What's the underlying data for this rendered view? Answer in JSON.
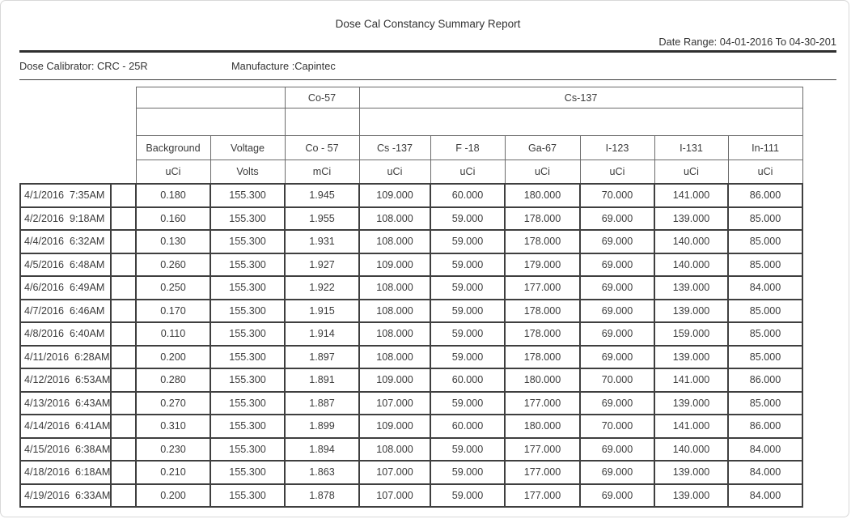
{
  "page": {
    "title": "Dose Cal Constancy Summary Report",
    "date_range": "Date Range: 04-01-2016 To 04-30-201",
    "dose_calibrator": "Dose Calibrator: CRC - 25R",
    "manufacture": "Manufacture :Capintec"
  },
  "table": {
    "group_headers": {
      "co57": "Co-57",
      "cs137": "Cs-137"
    },
    "columns": [
      "Background",
      "Voltage",
      "Co - 57",
      "Cs -137",
      "F -18",
      "Ga-67",
      "I-123",
      "I-131",
      "In-111"
    ],
    "units": [
      "uCi",
      "Volts",
      "mCi",
      "uCi",
      "uCi",
      "uCi",
      "uCi",
      "uCi",
      "uCi"
    ],
    "rows": [
      {
        "datetime": "4/1/2016  7:35AM",
        "values": [
          "0.180",
          "155.300",
          "1.945",
          "109.000",
          "60.000",
          "180.000",
          "70.000",
          "141.000",
          "86.000"
        ]
      },
      {
        "datetime": "4/2/2016  9:18AM",
        "values": [
          "0.160",
          "155.300",
          "1.955",
          "108.000",
          "59.000",
          "178.000",
          "69.000",
          "139.000",
          "85.000"
        ]
      },
      {
        "datetime": "4/4/2016  6:32AM",
        "values": [
          "0.130",
          "155.300",
          "1.931",
          "108.000",
          "59.000",
          "178.000",
          "69.000",
          "140.000",
          "85.000"
        ]
      },
      {
        "datetime": "4/5/2016  6:48AM",
        "values": [
          "0.260",
          "155.300",
          "1.927",
          "109.000",
          "59.000",
          "179.000",
          "69.000",
          "140.000",
          "85.000"
        ]
      },
      {
        "datetime": "4/6/2016  6:49AM",
        "values": [
          "0.250",
          "155.300",
          "1.922",
          "108.000",
          "59.000",
          "177.000",
          "69.000",
          "139.000",
          "84.000"
        ]
      },
      {
        "datetime": "4/7/2016  6:46AM",
        "values": [
          "0.170",
          "155.300",
          "1.915",
          "108.000",
          "59.000",
          "178.000",
          "69.000",
          "139.000",
          "85.000"
        ]
      },
      {
        "datetime": "4/8/2016  6:40AM",
        "values": [
          "0.110",
          "155.300",
          "1.914",
          "108.000",
          "59.000",
          "178.000",
          "69.000",
          "159.000",
          "85.000"
        ]
      },
      {
        "datetime": "4/11/2016  6:28AM",
        "values": [
          "0.200",
          "155.300",
          "1.897",
          "108.000",
          "59.000",
          "178.000",
          "69.000",
          "139.000",
          "85.000"
        ]
      },
      {
        "datetime": "4/12/2016  6:53AM",
        "values": [
          "0.280",
          "155.300",
          "1.891",
          "109.000",
          "60.000",
          "180.000",
          "70.000",
          "141.000",
          "86.000"
        ]
      },
      {
        "datetime": "4/13/2016  6:43AM",
        "values": [
          "0.270",
          "155.300",
          "1.887",
          "107.000",
          "59.000",
          "177.000",
          "69.000",
          "139.000",
          "85.000"
        ]
      },
      {
        "datetime": "4/14/2016  6:41AM",
        "values": [
          "0.310",
          "155.300",
          "1.899",
          "109.000",
          "60.000",
          "180.000",
          "70.000",
          "141.000",
          "86.000"
        ]
      },
      {
        "datetime": "4/15/2016  6:38AM",
        "values": [
          "0.230",
          "155.300",
          "1.894",
          "108.000",
          "59.000",
          "177.000",
          "69.000",
          "140.000",
          "84.000"
        ]
      },
      {
        "datetime": "4/18/2016  6:18AM",
        "values": [
          "0.210",
          "155.300",
          "1.863",
          "107.000",
          "59.000",
          "177.000",
          "69.000",
          "139.000",
          "84.000"
        ]
      },
      {
        "datetime": "4/19/2016  6:33AM",
        "values": [
          "0.200",
          "155.300",
          "1.878",
          "107.000",
          "59.000",
          "177.000",
          "69.000",
          "139.000",
          "84.000"
        ]
      }
    ]
  },
  "colors": {
    "text": "#3b3b3b",
    "data_border": "#3f3f3f",
    "header_border": "#6a6a6a",
    "page_border": "#d8d8d8"
  }
}
